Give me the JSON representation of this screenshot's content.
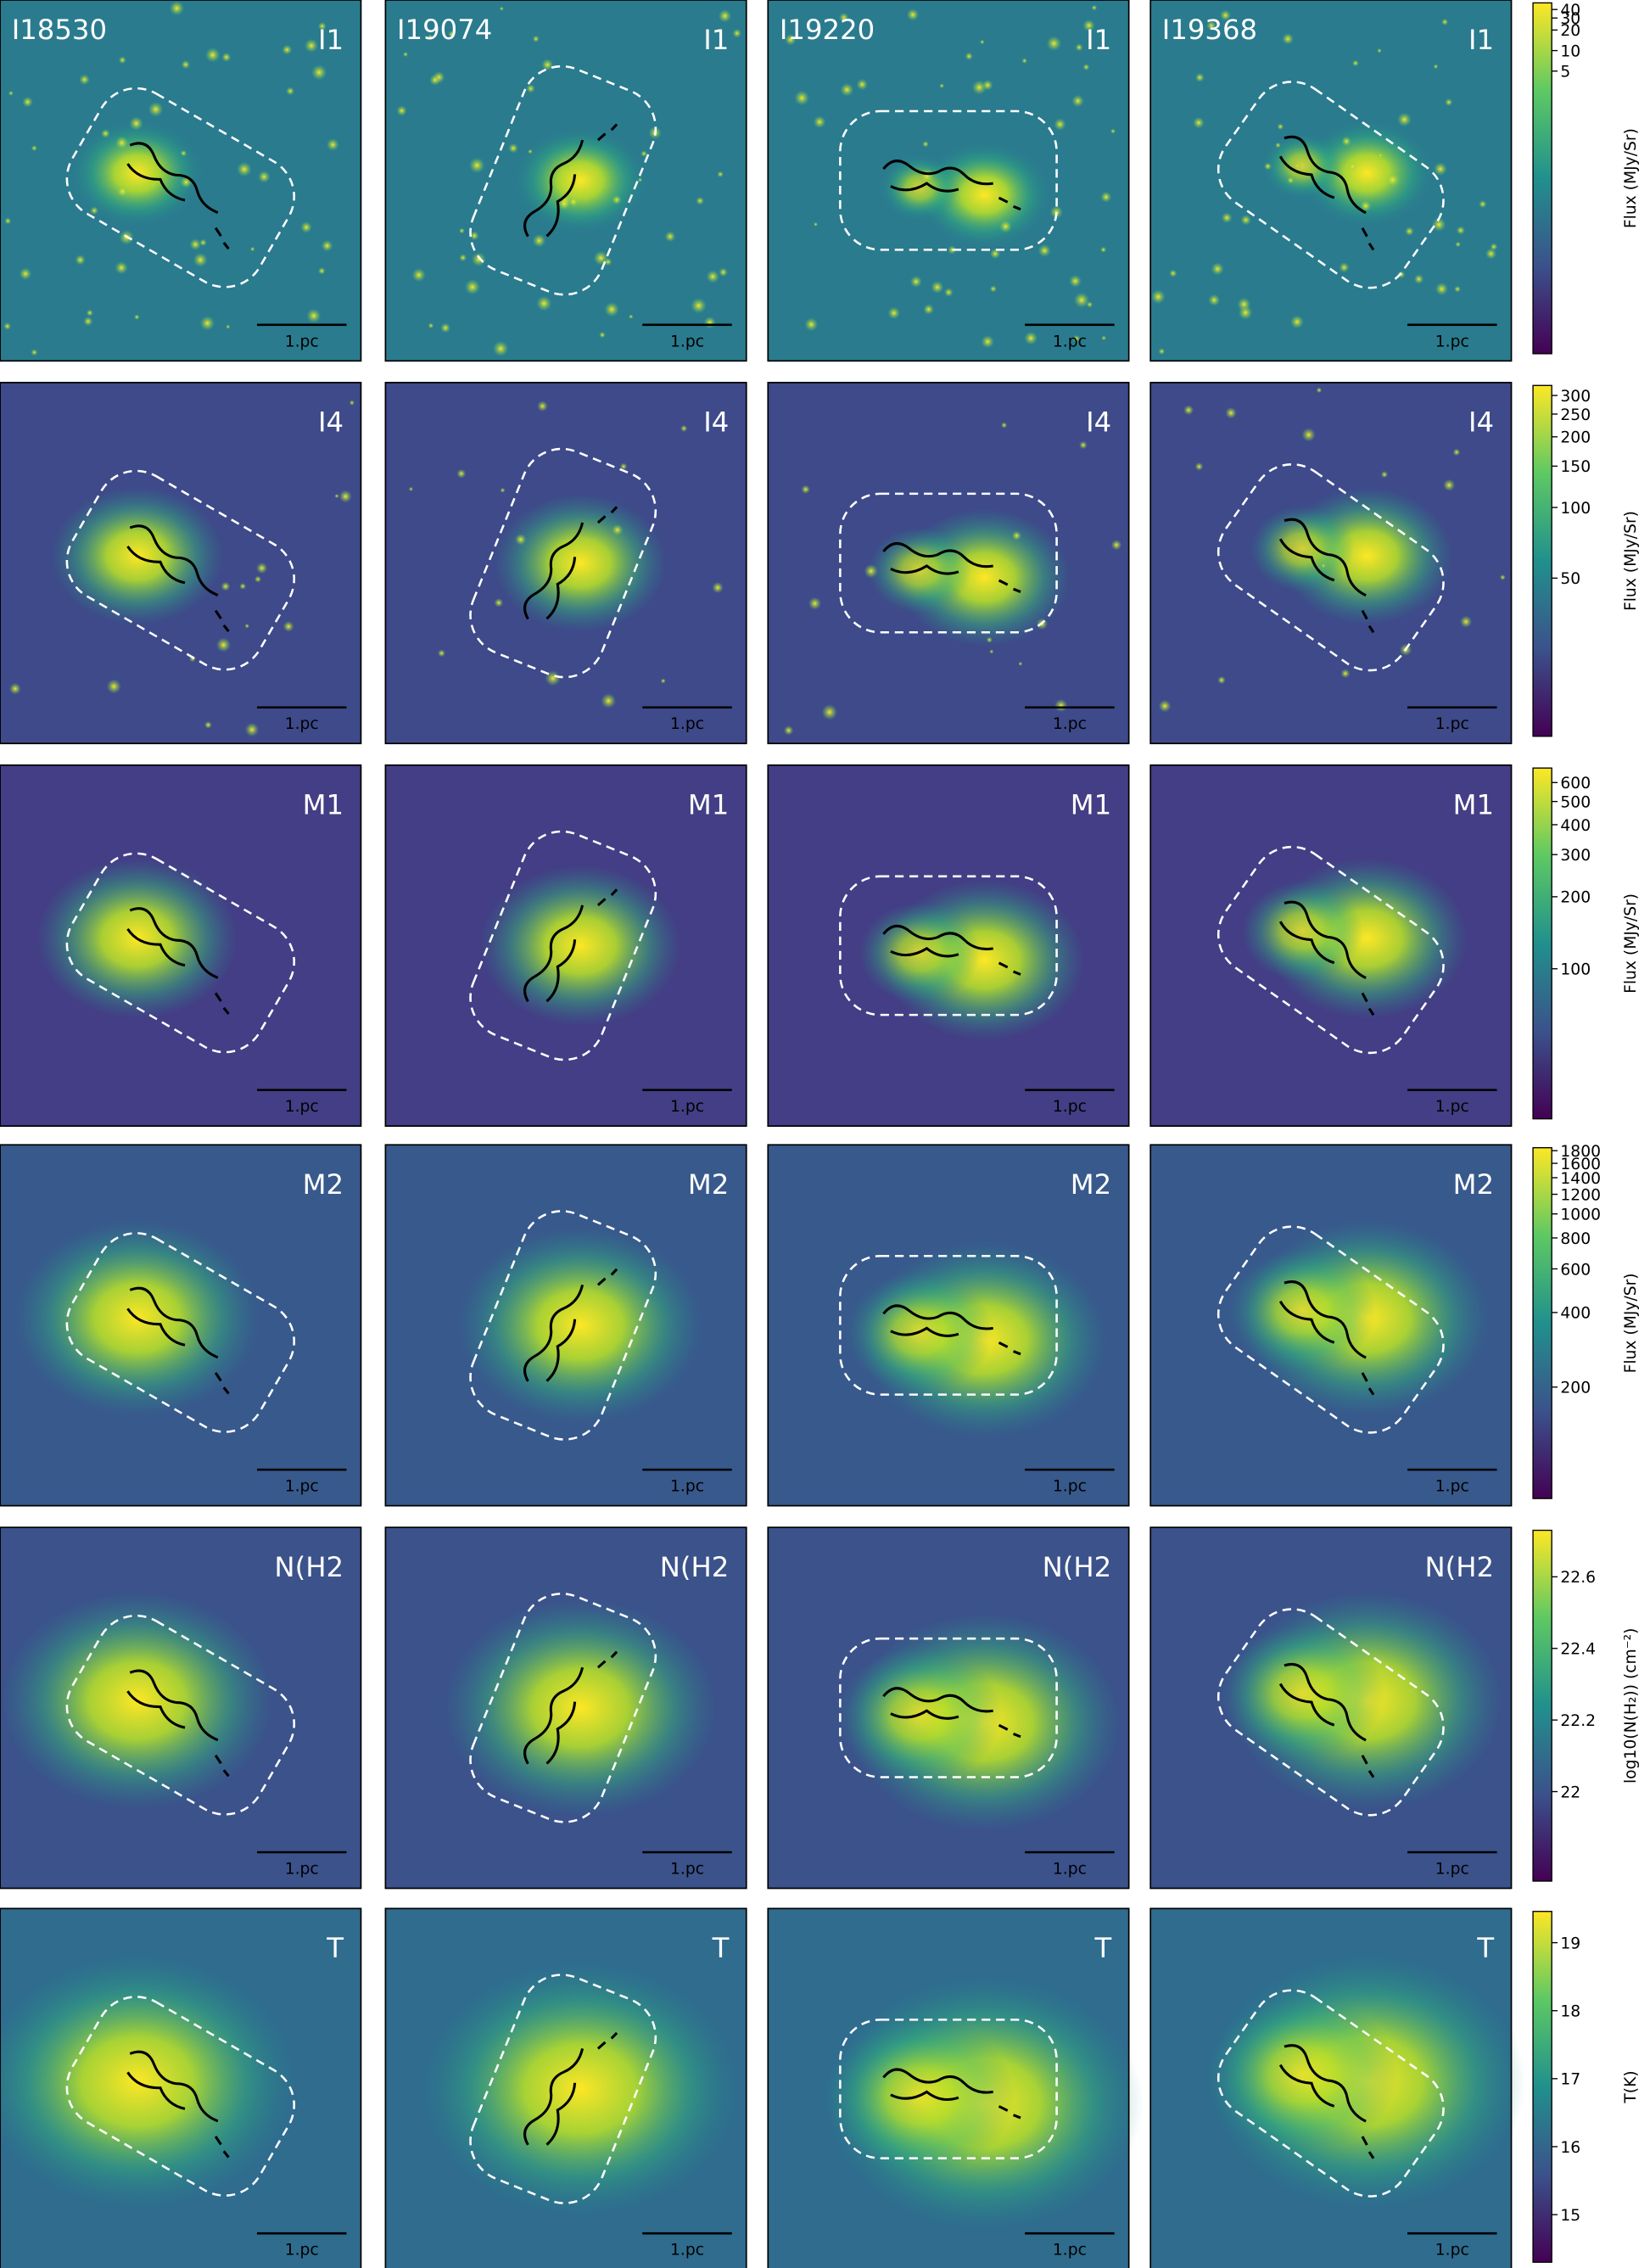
{
  "fields": [
    "I18530",
    "I19074",
    "I19220",
    "I19368"
  ],
  "scale_bar_label": "1.pc",
  "rows": [
    {
      "band": "I1",
      "colorbar": {
        "label": "Flux (MJy/Sr)",
        "scale": "log",
        "lim": [
          0.00036,
          50
        ],
        "ticks": [
          5,
          10,
          20,
          30,
          40
        ]
      }
    },
    {
      "band": "I4",
      "colorbar": {
        "label": "Flux (MJy/Sr)",
        "scale": "log",
        "lim": [
          10.6,
          331
        ],
        "ticks": [
          50,
          100,
          150,
          200,
          250,
          300
        ]
      }
    },
    {
      "band": "M1",
      "colorbar": {
        "label": "Flux (MJy/Sr)",
        "scale": "log",
        "lim": [
          23.6,
          690
        ],
        "ticks": [
          100,
          200,
          300,
          400,
          500,
          600
        ]
      }
    },
    {
      "band": "M2",
      "colorbar": {
        "label": "Flux (MJy/Sr)",
        "scale": "log",
        "lim": [
          71,
          1850
        ],
        "ticks": [
          200,
          400,
          600,
          800,
          1000,
          1200,
          1400,
          1600,
          1800
        ]
      }
    },
    {
      "band": "N(H2",
      "colorbar": {
        "label": "log10(N(H₂)) (cm⁻²)",
        "scale": "linear",
        "lim": [
          21.75,
          22.73
        ],
        "ticks": [
          22.0,
          22.2,
          22.4,
          22.6
        ]
      }
    },
    {
      "band": "T",
      "colorbar": {
        "label": "T(K)",
        "scale": "linear",
        "lim": [
          14.3,
          19.46
        ],
        "ticks": [
          15,
          16,
          17,
          18,
          19
        ]
      }
    }
  ]
}
